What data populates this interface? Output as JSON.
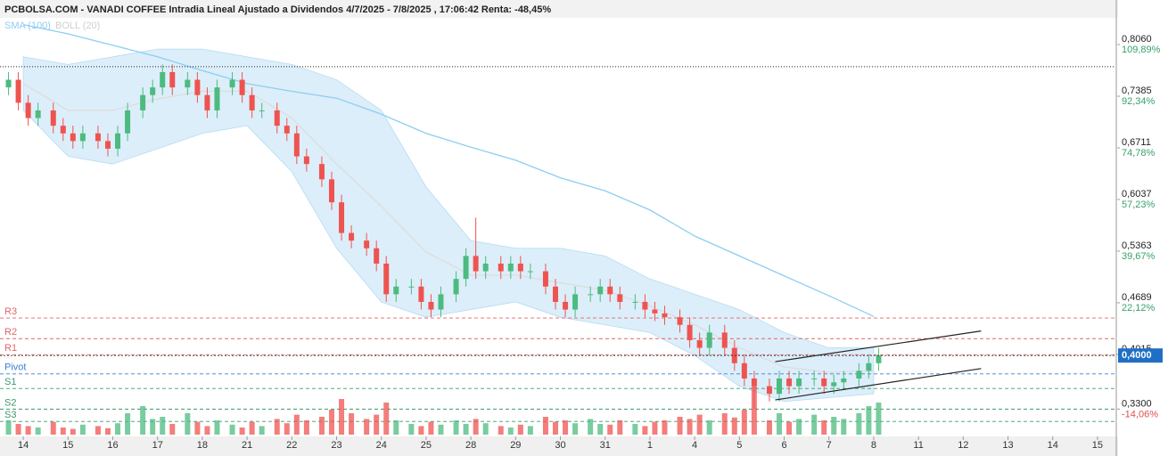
{
  "chart_data": {
    "type": "candlestick",
    "title": "PCBOLSA.COM - VANADI COFFEE Intradia Lineal Ajustado a Dividendos 4/7/2025 - 7/8/2025 , 17:06:42 Renta: -48,45%",
    "xlim": [
      -0.52,
      24.38
    ],
    "ylim": [
      0.2944,
      0.8525
    ],
    "y2lim": [
      -23.33,
      122.0
    ],
    "xticks": [
      {
        "value": 0,
        "label": "14"
      },
      {
        "value": 1,
        "label": "15"
      },
      {
        "value": 2,
        "label": "16"
      },
      {
        "value": 3,
        "label": "17"
      },
      {
        "value": 4,
        "label": "18"
      },
      {
        "value": 5,
        "label": "21"
      },
      {
        "value": 6,
        "label": "22"
      },
      {
        "value": 7,
        "label": "23"
      },
      {
        "value": 8,
        "label": "24"
      },
      {
        "value": 9,
        "label": "25"
      },
      {
        "value": 10,
        "label": "28"
      },
      {
        "value": 11,
        "label": "29"
      },
      {
        "value": 12,
        "label": "30"
      },
      {
        "value": 13,
        "label": "31"
      },
      {
        "value": 14,
        "label": "1"
      },
      {
        "value": 15,
        "label": "4"
      },
      {
        "value": 16,
        "label": "5"
      },
      {
        "value": 17,
        "label": "6"
      },
      {
        "value": 18,
        "label": "7"
      },
      {
        "value": 19,
        "label": "8"
      },
      {
        "value": 20,
        "label": "11"
      },
      {
        "value": 21,
        "label": "12"
      },
      {
        "value": 22,
        "label": "13"
      },
      {
        "value": 23,
        "label": "14"
      },
      {
        "value": 24,
        "label": "15"
      }
    ],
    "yticks": [
      {
        "value": 0.806,
        "label": "0,8060"
      },
      {
        "value": 0.7385,
        "label": "0,7385"
      },
      {
        "value": 0.6711,
        "label": "0,6711"
      },
      {
        "value": 0.6037,
        "label": "0,6037"
      },
      {
        "value": 0.5363,
        "label": "0,5363"
      },
      {
        "value": 0.4689,
        "label": "0,4689"
      },
      {
        "value": 0.4015,
        "label": "0,4015"
      },
      {
        "value": 0.33,
        "label": "0,3300"
      }
    ],
    "y2ticks": [
      {
        "value": 109.89,
        "label": "109,89%"
      },
      {
        "value": 92.34,
        "label": "92,34%"
      },
      {
        "value": 74.78,
        "label": "74,78%"
      },
      {
        "value": 57.23,
        "label": "57,23%"
      },
      {
        "value": 39.67,
        "label": "39,67%"
      },
      {
        "value": 22.12,
        "label": "22,12%"
      },
      {
        "value": -14.06,
        "label": "-14,06%"
      }
    ],
    "up_color": "#4cbb7f",
    "down_color": "#ef5350",
    "x": [
      -0.33,
      -0.11,
      0.11,
      0.33,
      0.67,
      0.89,
      1.11,
      1.33,
      1.67,
      1.89,
      2.11,
      2.33,
      2.67,
      2.89,
      3.11,
      3.33,
      3.67,
      3.89,
      4.11,
      4.33,
      4.67,
      4.89,
      5.11,
      5.33,
      5.67,
      5.89,
      6.11,
      6.33,
      6.67,
      6.89,
      7.11,
      7.33,
      7.67,
      7.89,
      8.11,
      8.33,
      8.67,
      8.89,
      9.11,
      9.33,
      9.67,
      9.89,
      10.11,
      10.33,
      10.67,
      10.89,
      11.11,
      11.33,
      11.67,
      11.89,
      12.11,
      12.33,
      12.67,
      12.89,
      13.11,
      13.33,
      13.67,
      13.89,
      14.11,
      14.33,
      14.67,
      14.89,
      15.11,
      15.33,
      15.67,
      15.89,
      16.11,
      16.33,
      16.67,
      16.89,
      17.11,
      17.33,
      17.67,
      17.89,
      18.11,
      18.33,
      18.67,
      18.89,
      19.11
    ],
    "open": [
      0.75,
      0.76,
      0.73,
      0.71,
      0.72,
      0.7,
      0.69,
      0.68,
      0.69,
      0.68,
      0.67,
      0.69,
      0.72,
      0.74,
      0.75,
      0.77,
      0.75,
      0.76,
      0.74,
      0.72,
      0.75,
      0.76,
      0.74,
      0.72,
      0.72,
      0.7,
      0.69,
      0.66,
      0.65,
      0.63,
      0.6,
      0.56,
      0.55,
      0.54,
      0.52,
      0.48,
      0.49,
      0.49,
      0.47,
      0.46,
      0.48,
      0.5,
      0.53,
      0.51,
      0.52,
      0.51,
      0.52,
      0.51,
      0.51,
      0.49,
      0.47,
      0.46,
      0.48,
      0.48,
      0.49,
      0.48,
      0.47,
      0.47,
      0.46,
      0.455,
      0.45,
      0.44,
      0.42,
      0.41,
      0.43,
      0.41,
      0.39,
      0.37,
      0.36,
      0.35,
      0.37,
      0.36,
      0.37,
      0.37,
      0.36,
      0.365,
      0.37,
      0.38,
      0.39
    ],
    "high": [
      0.77,
      0.77,
      0.74,
      0.73,
      0.73,
      0.71,
      0.7,
      0.7,
      0.7,
      0.69,
      0.7,
      0.73,
      0.75,
      0.76,
      0.78,
      0.78,
      0.77,
      0.77,
      0.75,
      0.76,
      0.77,
      0.77,
      0.75,
      0.73,
      0.73,
      0.71,
      0.7,
      0.67,
      0.66,
      0.64,
      0.61,
      0.57,
      0.56,
      0.55,
      0.53,
      0.5,
      0.5,
      0.5,
      0.48,
      0.49,
      0.51,
      0.54,
      0.58,
      0.53,
      0.53,
      0.53,
      0.53,
      0.52,
      0.52,
      0.5,
      0.48,
      0.49,
      0.49,
      0.5,
      0.5,
      0.49,
      0.48,
      0.48,
      0.47,
      0.465,
      0.46,
      0.45,
      0.43,
      0.44,
      0.44,
      0.42,
      0.4,
      0.38,
      0.37,
      0.38,
      0.38,
      0.38,
      0.38,
      0.38,
      0.375,
      0.38,
      0.39,
      0.4,
      0.41
    ],
    "low": [
      0.74,
      0.72,
      0.7,
      0.7,
      0.69,
      0.68,
      0.67,
      0.67,
      0.67,
      0.66,
      0.66,
      0.68,
      0.71,
      0.73,
      0.74,
      0.74,
      0.74,
      0.73,
      0.71,
      0.71,
      0.74,
      0.73,
      0.71,
      0.71,
      0.69,
      0.68,
      0.65,
      0.64,
      0.62,
      0.59,
      0.55,
      0.54,
      0.53,
      0.51,
      0.47,
      0.47,
      0.48,
      0.46,
      0.45,
      0.45,
      0.47,
      0.49,
      0.5,
      0.5,
      0.5,
      0.5,
      0.5,
      0.5,
      0.48,
      0.46,
      0.45,
      0.45,
      0.47,
      0.47,
      0.47,
      0.46,
      0.46,
      0.45,
      0.445,
      0.44,
      0.43,
      0.41,
      0.4,
      0.4,
      0.4,
      0.38,
      0.36,
      0.33,
      0.34,
      0.34,
      0.35,
      0.35,
      0.36,
      0.35,
      0.35,
      0.355,
      0.36,
      0.37,
      0.38
    ],
    "close": [
      0.76,
      0.73,
      0.71,
      0.72,
      0.7,
      0.69,
      0.68,
      0.69,
      0.68,
      0.67,
      0.69,
      0.72,
      0.74,
      0.75,
      0.77,
      0.75,
      0.76,
      0.74,
      0.72,
      0.75,
      0.76,
      0.74,
      0.72,
      0.72,
      0.7,
      0.69,
      0.66,
      0.65,
      0.63,
      0.6,
      0.56,
      0.55,
      0.54,
      0.52,
      0.48,
      0.49,
      0.49,
      0.47,
      0.46,
      0.48,
      0.5,
      0.53,
      0.51,
      0.52,
      0.51,
      0.52,
      0.51,
      0.51,
      0.49,
      0.47,
      0.46,
      0.48,
      0.48,
      0.49,
      0.48,
      0.47,
      0.47,
      0.46,
      0.455,
      0.45,
      0.44,
      0.42,
      0.41,
      0.43,
      0.41,
      0.39,
      0.37,
      0.36,
      0.35,
      0.37,
      0.36,
      0.37,
      0.37,
      0.36,
      0.365,
      0.37,
      0.38,
      0.39,
      0.4
    ],
    "volume_lim": [
      0,
      100
    ],
    "volume": [
      20,
      15,
      12,
      10,
      18,
      10,
      8,
      14,
      12,
      9,
      16,
      30,
      40,
      22,
      25,
      15,
      30,
      18,
      12,
      20,
      14,
      10,
      18,
      12,
      22,
      16,
      28,
      20,
      25,
      35,
      50,
      30,
      22,
      28,
      45,
      20,
      15,
      12,
      18,
      14,
      20,
      15,
      22,
      16,
      12,
      10,
      14,
      12,
      25,
      18,
      20,
      16,
      22,
      15,
      14,
      20,
      15,
      12,
      18,
      20,
      25,
      22,
      28,
      20,
      30,
      24,
      35,
      68,
      20,
      30,
      18,
      22,
      28,
      20,
      25,
      22,
      30,
      40,
      45
    ],
    "series": [
      {
        "name": "SMA (100)",
        "color": "#8ecdf2",
        "x": [
          0,
          1,
          2,
          3,
          4,
          5,
          6,
          7,
          8,
          9,
          10,
          11,
          12,
          13,
          14,
          15,
          16,
          17,
          18,
          19
        ],
        "values": [
          0.832,
          0.82,
          0.805,
          0.79,
          0.772,
          0.755,
          0.745,
          0.736,
          0.715,
          0.69,
          0.672,
          0.655,
          0.632,
          0.615,
          0.59,
          0.556,
          0.53,
          0.504,
          0.478,
          0.451
        ]
      },
      {
        "name": "BOLL (20)",
        "color": "#dddddd",
        "x": [
          0,
          1,
          2,
          3,
          4,
          5,
          6,
          7,
          8,
          9,
          10,
          11,
          12,
          13,
          14,
          15,
          16,
          17,
          18,
          19
        ],
        "values": [
          0.755,
          0.72,
          0.72,
          0.735,
          0.745,
          0.745,
          0.71,
          0.65,
          0.595,
          0.535,
          0.505,
          0.505,
          0.495,
          0.485,
          0.465,
          0.44,
          0.41,
          0.385,
          0.378,
          0.38
        ],
        "upper": [
          0.79,
          0.78,
          0.79,
          0.8,
          0.8,
          0.79,
          0.78,
          0.76,
          0.72,
          0.62,
          0.55,
          0.54,
          0.54,
          0.53,
          0.5,
          0.48,
          0.46,
          0.43,
          0.41,
          0.41
        ],
        "lower": [
          0.72,
          0.66,
          0.65,
          0.67,
          0.69,
          0.7,
          0.64,
          0.54,
          0.47,
          0.45,
          0.46,
          0.47,
          0.45,
          0.44,
          0.43,
          0.4,
          0.36,
          0.34,
          0.345,
          0.35
        ]
      }
    ],
    "band_color": "#d6ecfa",
    "max_line": 0.777,
    "levels": [
      {
        "name": "R3",
        "value": 0.449,
        "color": "#e06666"
      },
      {
        "name": "R2",
        "value": 0.422,
        "color": "#e06666"
      },
      {
        "name": "R1",
        "value": 0.401,
        "color": "#e06666"
      },
      {
        "name": "Pivot",
        "value": 0.376,
        "color": "#3d7fd1"
      },
      {
        "name": "S1",
        "value": 0.357,
        "color": "#3a9a6a"
      },
      {
        "name": "S2",
        "value": 0.33,
        "color": "#3a9a6a"
      },
      {
        "name": "S3",
        "value": 0.314,
        "color": "#3a9a6a"
      }
    ],
    "trendlines": [
      {
        "x": [
          16.8,
          21.4
        ],
        "y": [
          0.392,
          0.432
        ]
      },
      {
        "x": [
          16.8,
          21.4
        ],
        "y": [
          0.342,
          0.383
        ]
      }
    ],
    "last_price": {
      "value": 0.4,
      "label": "0,4000"
    }
  }
}
